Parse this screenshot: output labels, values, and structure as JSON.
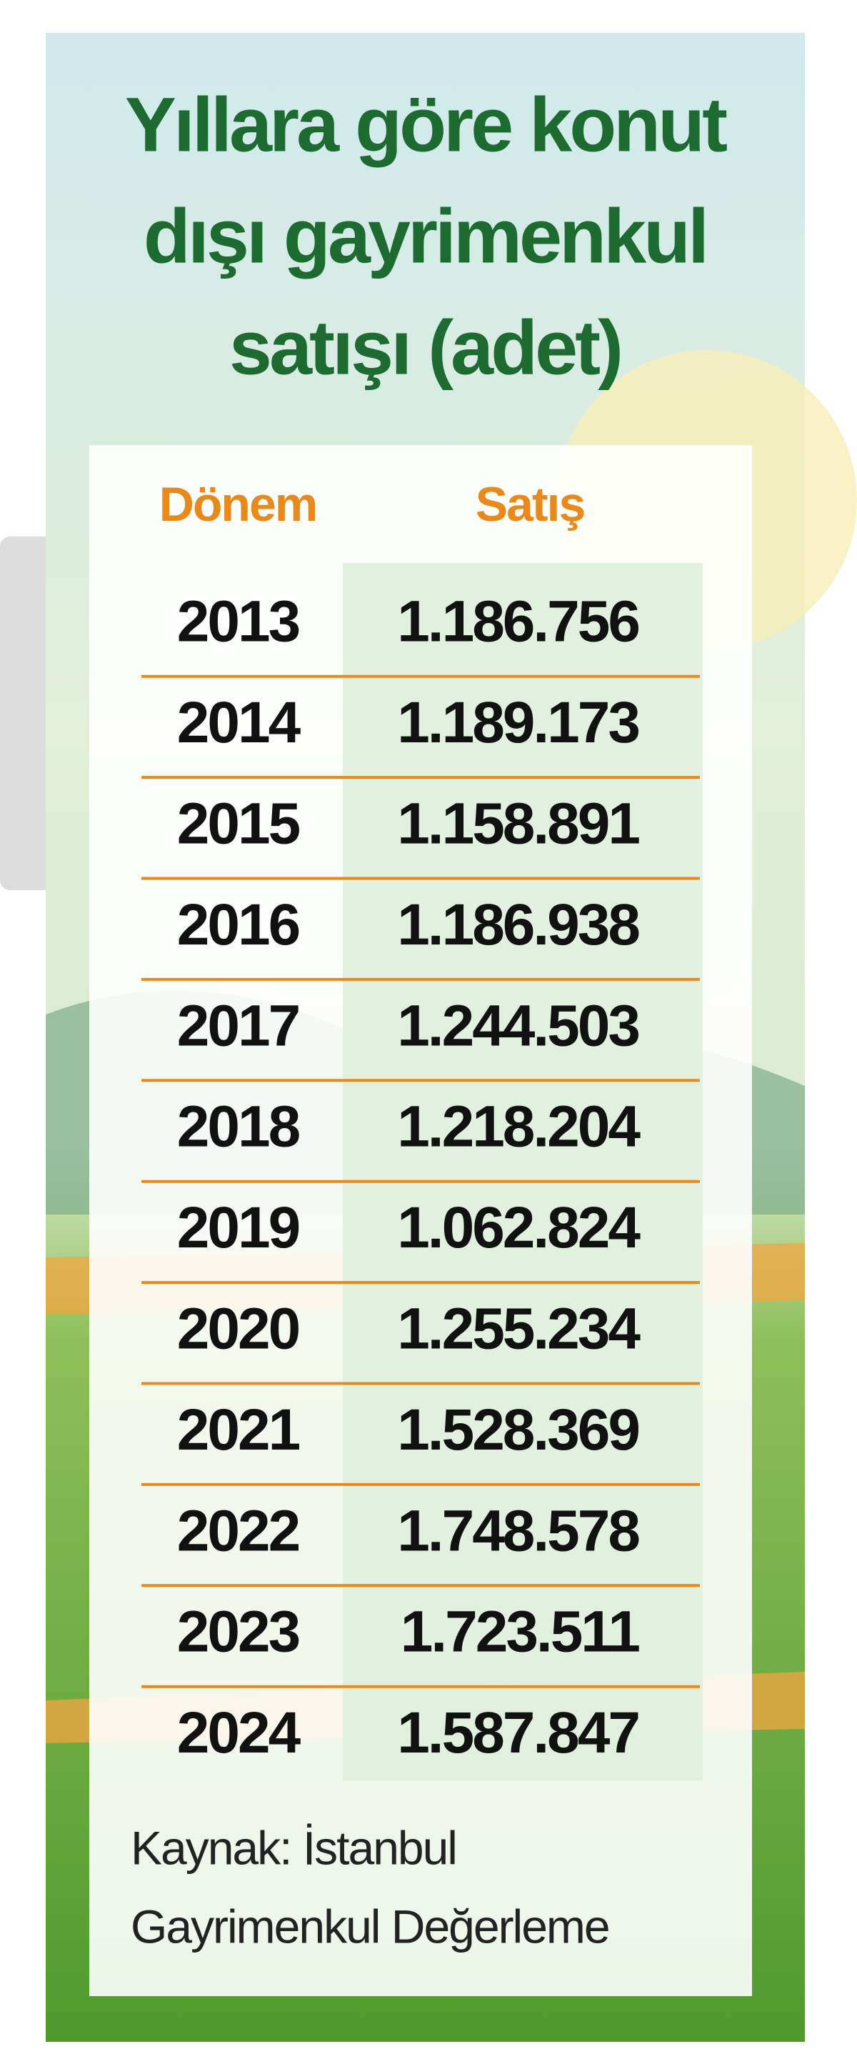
{
  "title": [
    "Yıllara göre konut",
    "dışı gayrimenkul",
    "satışı (adet)"
  ],
  "table": {
    "header": [
      "Dönem",
      "Satış"
    ],
    "rows": [
      [
        "2013",
        "1.186.756"
      ],
      [
        "2014",
        "1.189.173"
      ],
      [
        "2015",
        "1.158.891"
      ],
      [
        "2016",
        "1.186.938"
      ],
      [
        "2017",
        "1.244.503"
      ],
      [
        "2018",
        "1.218.204"
      ],
      [
        "2019",
        "1.062.824"
      ],
      [
        "2020",
        "1.255.234"
      ],
      [
        "2021",
        "1.528.369"
      ],
      [
        "2022",
        "1.748.578"
      ],
      [
        "2023",
        "1.723.511"
      ],
      [
        "2024",
        "1.587.847"
      ]
    ]
  },
  "source": [
    "Kaynak: İstanbul",
    "Gayrimenkul Değerleme"
  ]
}
